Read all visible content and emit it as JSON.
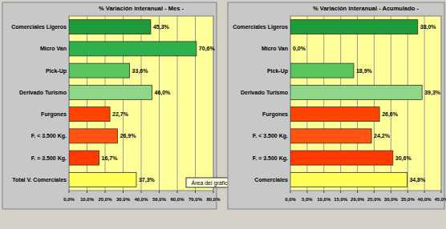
{
  "chart_data": [
    {
      "type": "bar",
      "orientation": "horizontal",
      "title": "% Variación interanual - Mes -",
      "categories": [
        "Comerciales Ligeros",
        "Micro Van",
        "Pick-Up",
        "Derivado Turismo",
        "Furgones",
        "F. < 3.500 Kg.",
        "F. = 3.500 Kg.",
        "Total V. Comerciales"
      ],
      "values": [
        45.3,
        70.6,
        33.6,
        46.0,
        22.7,
        26.9,
        16.7,
        37.3
      ],
      "value_labels": [
        "45,3%",
        "70,6%",
        "33,6%",
        "46,0%",
        "22,7%",
        "26,9%",
        "16,7%",
        "37,3%"
      ],
      "colors": [
        "#1f9a3a",
        "#2fb04a",
        "#5cc45e",
        "#8fd88a",
        "#ff4400",
        "#ff5511",
        "#ff3a00",
        "#ffff55"
      ],
      "xlim": [
        0,
        80
      ],
      "xticks": [
        {
          "value": 0,
          "label": "0,0%"
        },
        {
          "value": 10,
          "label": "10,0%"
        },
        {
          "value": 20,
          "label": "20,0%"
        },
        {
          "value": 30,
          "label": "30,0%"
        },
        {
          "value": 40,
          "label": "40,0%"
        },
        {
          "value": 50,
          "label": "50,0%"
        },
        {
          "value": 60,
          "label": "60,0%"
        },
        {
          "value": 70,
          "label": "70,0%"
        },
        {
          "value": 80,
          "label": "80,0%"
        }
      ],
      "grid": true,
      "data_labels": true,
      "annotation": "Área del gráfico"
    },
    {
      "type": "bar",
      "orientation": "horizontal",
      "title": "% Variación interanual - Acumulado -",
      "categories": [
        "Comerciales Ligeros",
        "Micro Van",
        "Pick-Up",
        "Derivado Turismo",
        "Furgones",
        "F. < 3.500 Kg.",
        "F. = 3.500 Kg.",
        "Comerciales"
      ],
      "values": [
        38.0,
        0.0,
        18.9,
        39.3,
        26.6,
        24.2,
        30.6,
        34.8
      ],
      "value_labels": [
        "38,0%",
        "0,0%",
        "18,9%",
        "39,3%",
        "26,6%",
        "24,2%",
        "30,6%",
        "34,8%"
      ],
      "colors": [
        "#1f9a3a",
        "#2fb04a",
        "#5cc45e",
        "#8fd88a",
        "#ff4400",
        "#ff5511",
        "#ff3a00",
        "#ffff55"
      ],
      "xlim": [
        0,
        45
      ],
      "xticks": [
        {
          "value": 0,
          "label": "0,0%"
        },
        {
          "value": 5,
          "label": "5,0%"
        },
        {
          "value": 10,
          "label": "10,0%"
        },
        {
          "value": 15,
          "label": "15,0%"
        },
        {
          "value": 20,
          "label": "20,0%"
        },
        {
          "value": 25,
          "label": "25,0%"
        },
        {
          "value": 30,
          "label": "30,0%"
        },
        {
          "value": 35,
          "label": "35,0%"
        },
        {
          "value": 40,
          "label": "40,0%"
        },
        {
          "value": 45,
          "label": "45,0%"
        }
      ],
      "grid": true,
      "data_labels": true
    }
  ]
}
